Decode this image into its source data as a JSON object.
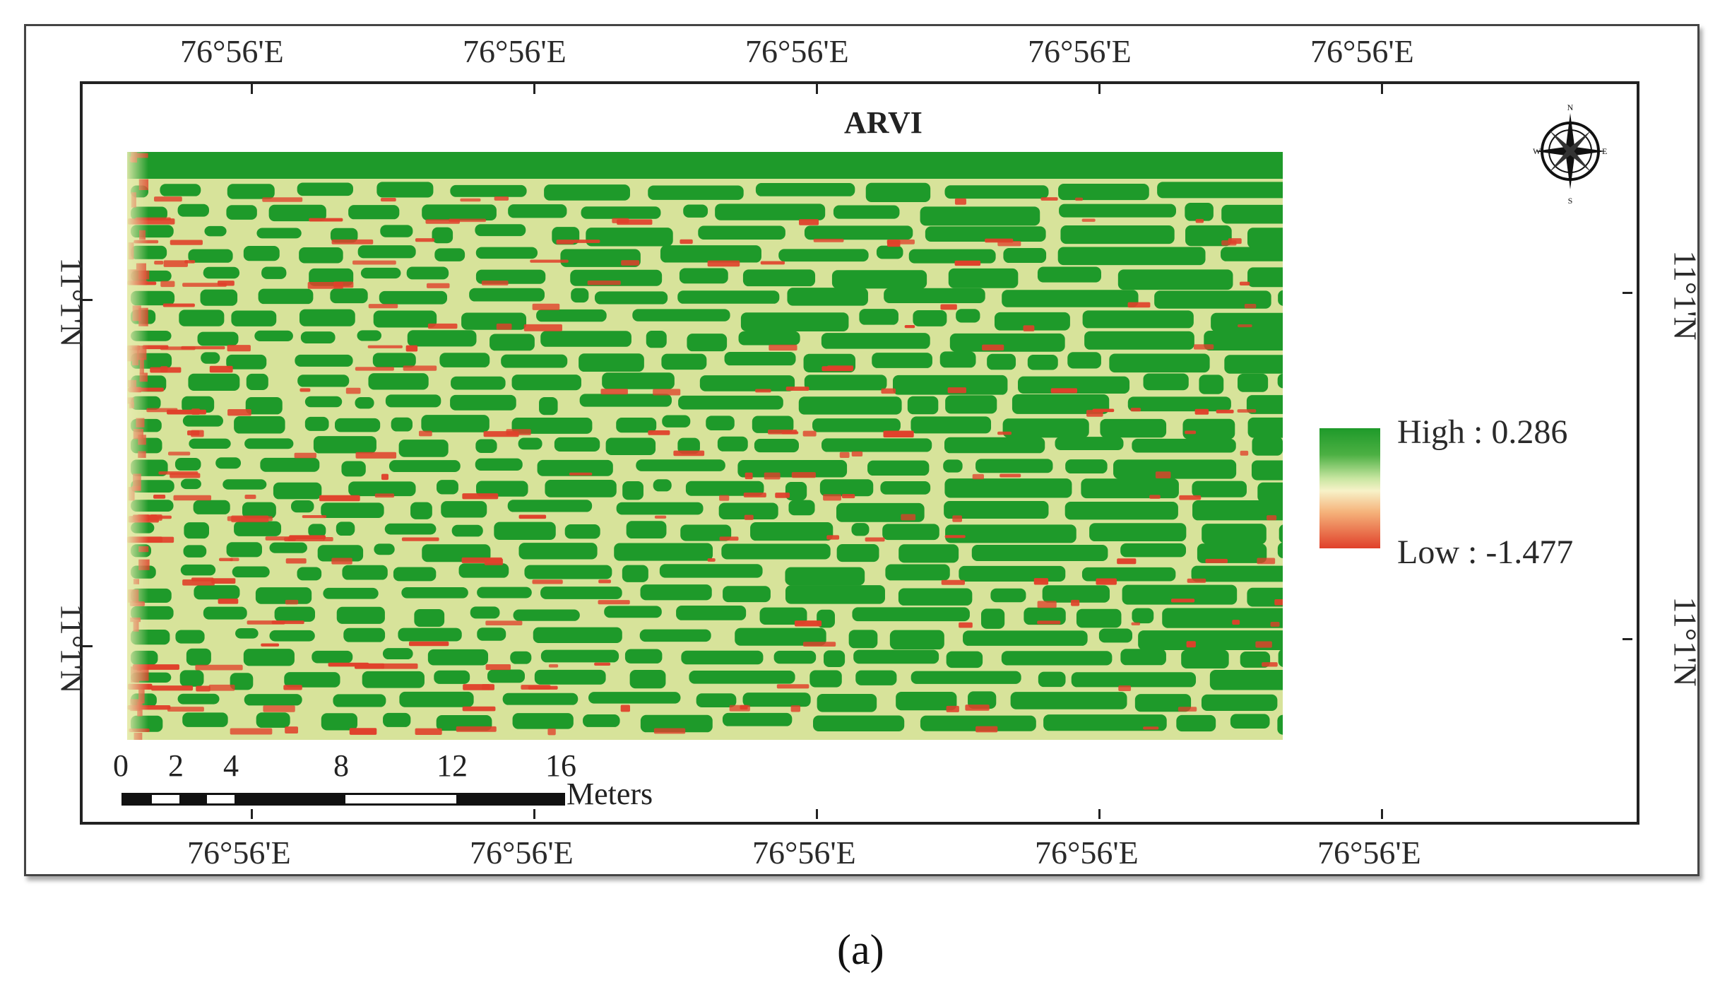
{
  "map": {
    "title": "ARVI",
    "lon_labels_top": [
      "76°56'E",
      "76°56'E",
      "76°56'E",
      "76°56'E",
      "76°56'E"
    ],
    "lon_labels_bottom": [
      "76°56'E",
      "76°56'E",
      "76°56'E",
      "76°56'E",
      "76°56'E"
    ],
    "lat_labels_left": [
      "11°1'N",
      "11°1'N"
    ],
    "lat_labels_right": [
      "11°1'N",
      "11°1'N"
    ],
    "legend": {
      "high_label": "High : 0.286",
      "low_label": "Low : -1.477",
      "high_color": "#1e9a2a",
      "mid_color": "#f7f2c8",
      "low_color": "#e0402a"
    },
    "scale_bar": {
      "ticks": [
        "0",
        "2",
        "4",
        "8",
        "12",
        "16"
      ],
      "unit": "Meters"
    },
    "north_arrow": "compass-rose-icon"
  },
  "caption": "(a)"
}
